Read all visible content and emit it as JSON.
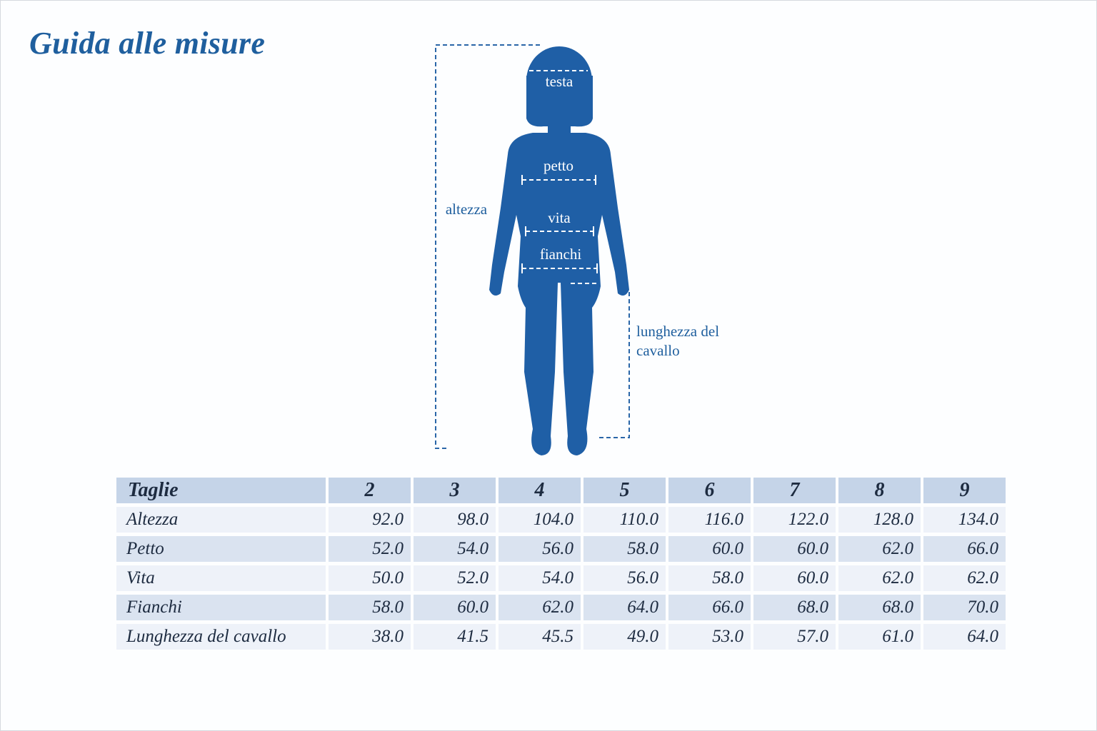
{
  "title": "Guida alle misure",
  "figure": {
    "labels": [
      "testa",
      "petto",
      "vita",
      "fianchi",
      "altezza",
      "lunghezza del cavallo"
    ]
  },
  "table": {
    "header": [
      "Taglie",
      "2",
      "3",
      "4",
      "5",
      "6",
      "7",
      "8",
      "9"
    ],
    "rows": [
      [
        "Altezza",
        "92.0",
        "98.0",
        "104.0",
        "110.0",
        "116.0",
        "122.0",
        "128.0",
        "134.0"
      ],
      [
        "Petto",
        "52.0",
        "54.0",
        "56.0",
        "58.0",
        "60.0",
        "60.0",
        "62.0",
        "66.0"
      ],
      [
        "Vita",
        "50.0",
        "52.0",
        "54.0",
        "56.0",
        "58.0",
        "60.0",
        "62.0",
        "62.0"
      ],
      [
        "Fianchi",
        "58.0",
        "60.0",
        "62.0",
        "64.0",
        "66.0",
        "68.0",
        "68.0",
        "70.0"
      ],
      [
        "Lunghezza del cavallo",
        "38.0",
        "41.5",
        "45.5",
        "49.0",
        "53.0",
        "57.0",
        "61.0",
        "64.0"
      ]
    ]
  }
}
